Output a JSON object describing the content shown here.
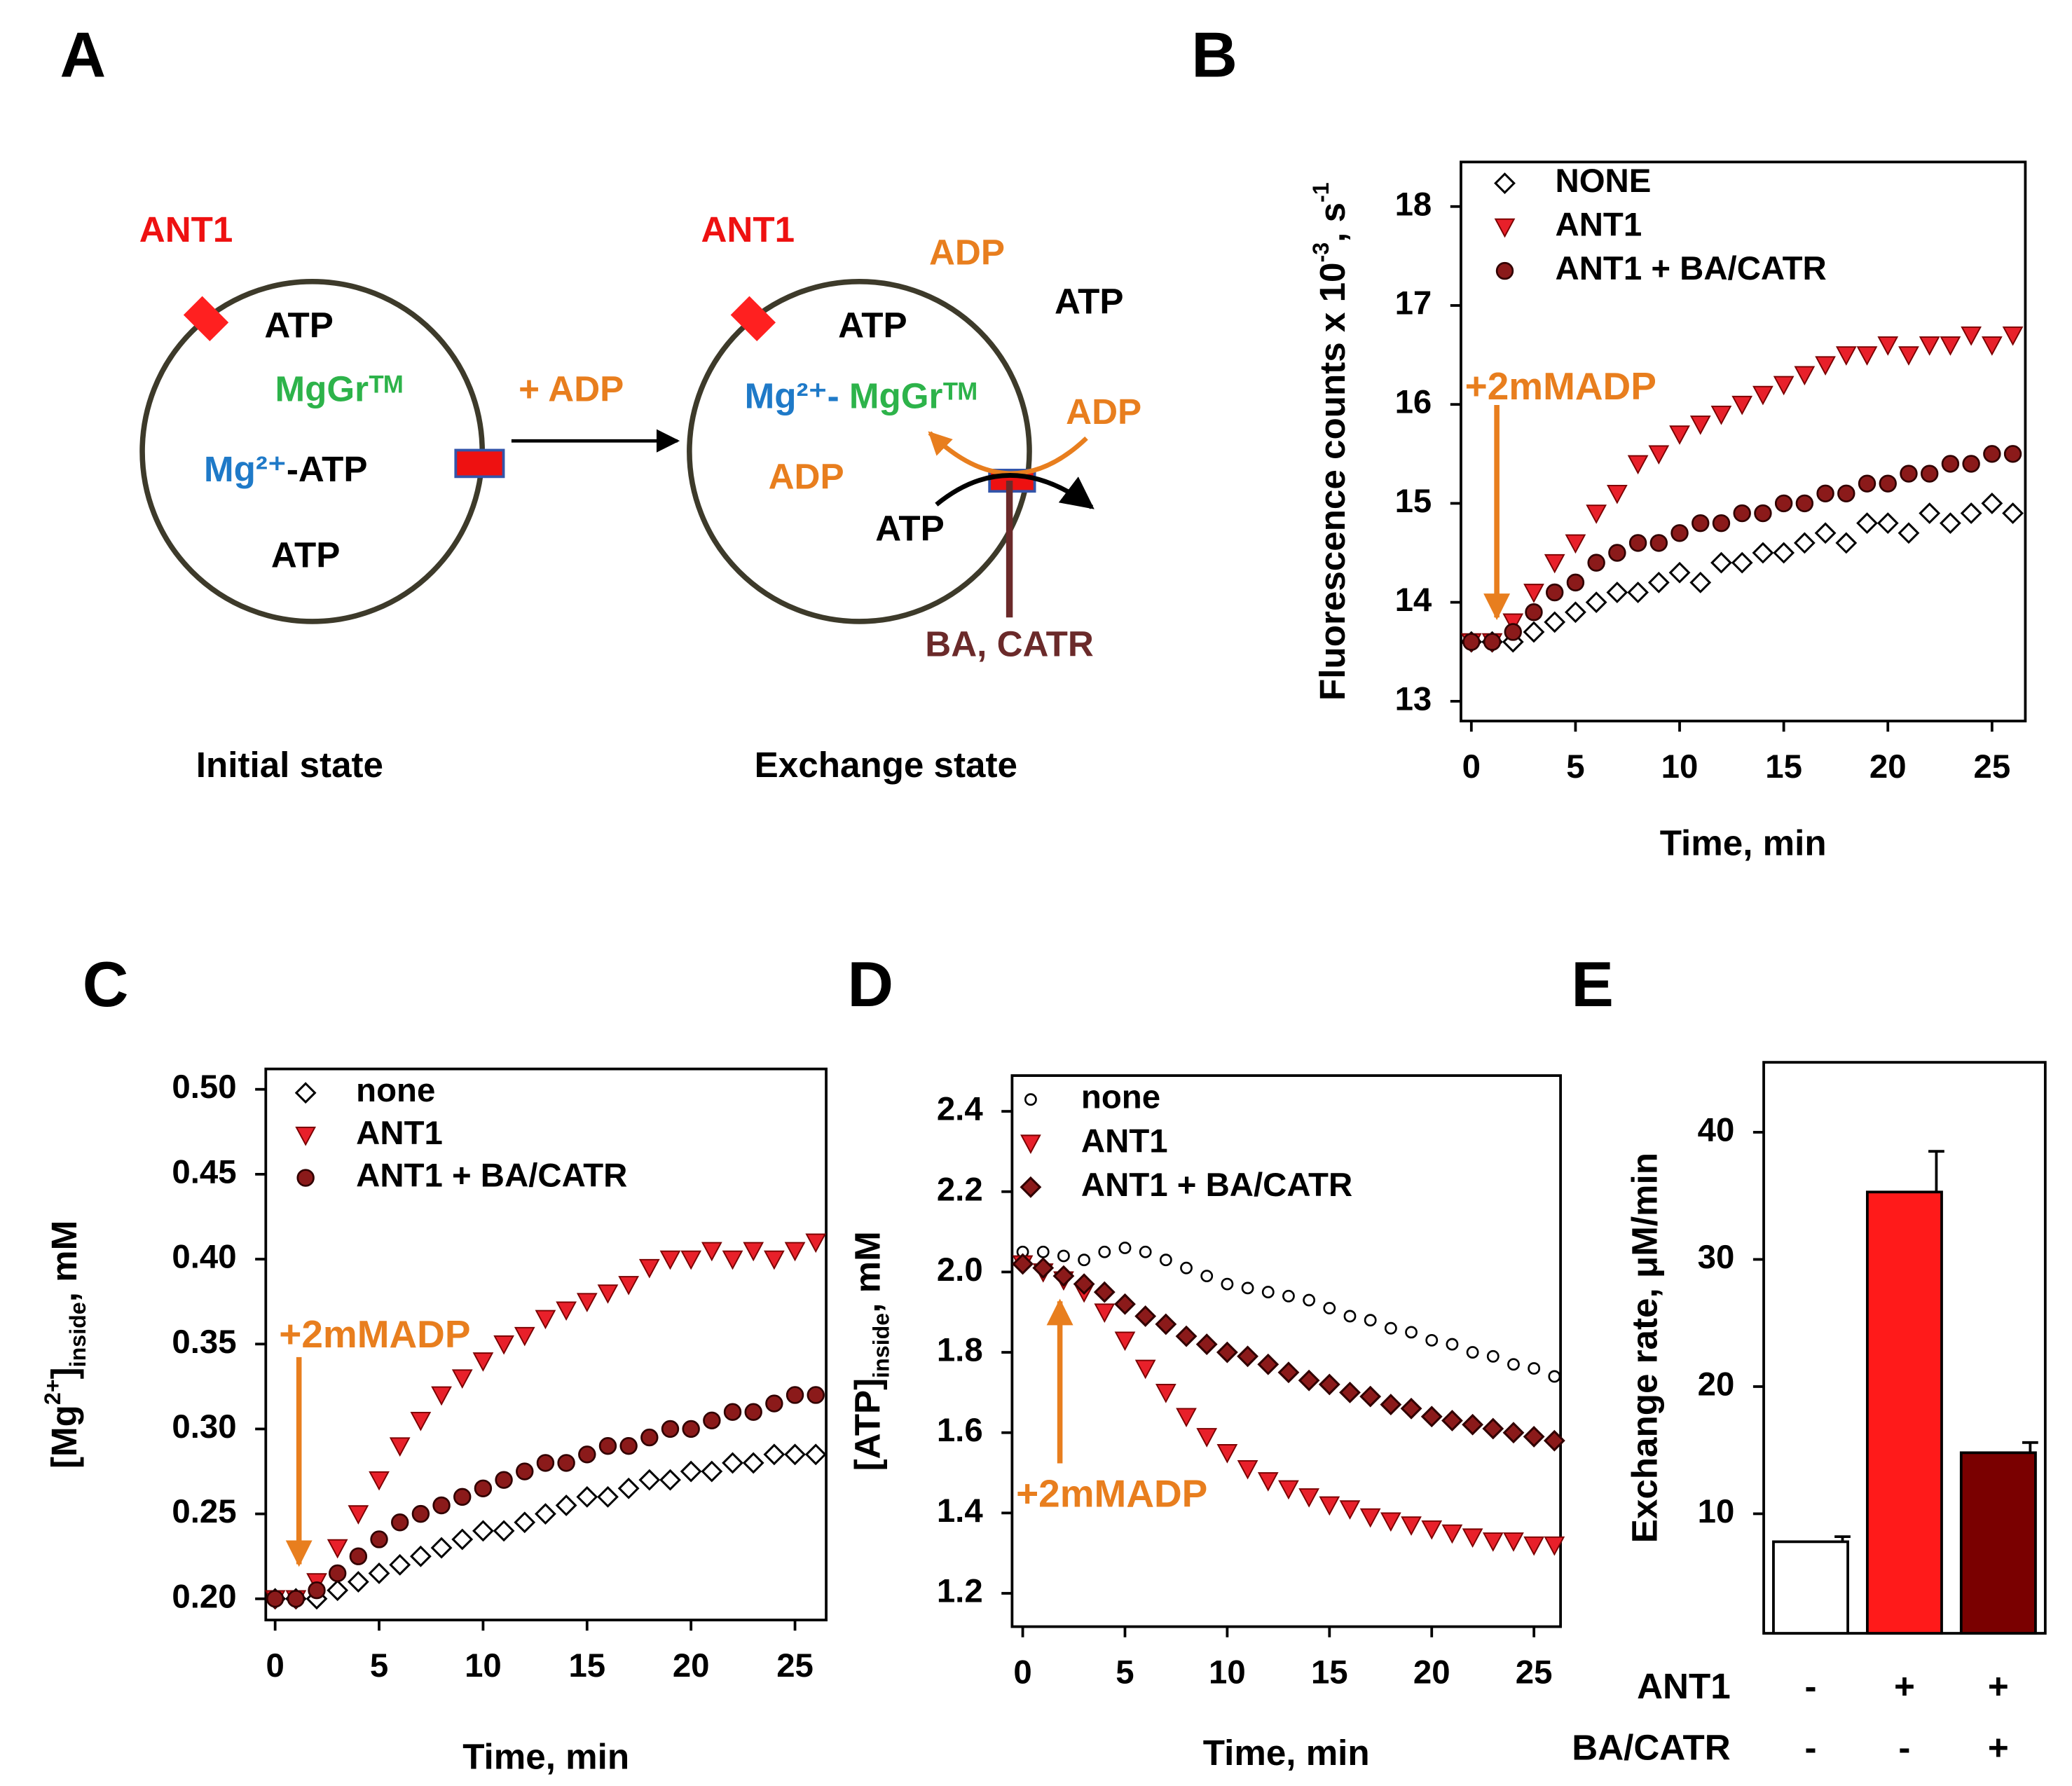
{
  "diagram": {
    "label": "A",
    "initial": {
      "ant1": "ANT1",
      "atp_top": "ATP",
      "mggr": "MgGrᵀᴹ",
      "mg_ion": "Mg²⁺",
      "mg_atp_rest": "-ATP",
      "atp_bottom": "ATP",
      "caption": "Initial state"
    },
    "arrow_label": "+ ADP",
    "exchange": {
      "ant1": "ANT1",
      "adp_top": "ADP",
      "atp_outside": "ATP",
      "atp_top": "ATP",
      "mg_ion": "Mg²⁺-",
      "mggr": "MgGrᵀᴹ",
      "adp_out": "ADP",
      "adp_in": "ADP",
      "atp_in": "ATP",
      "inhibitors": "BA, CATR",
      "caption": "Exchange state"
    }
  },
  "chart_data": [
    {
      "type": "scatter",
      "label": "B",
      "xlabel": "Time, min",
      "ylabel": [
        "Fluorescence counts x 10",
        {
          "sup": "-3"
        },
        ", s",
        {
          "sup": "-1"
        }
      ],
      "xlim": [
        -0.5,
        26.6
      ],
      "xticks": [
        0,
        5,
        10,
        15,
        20,
        25
      ],
      "ylim": [
        12.8,
        18.45
      ],
      "yticks": [
        13,
        14,
        15,
        16,
        17,
        18
      ],
      "legend": "upper left",
      "annotation": "+2mMADP",
      "x": [
        0,
        1,
        2,
        3,
        4,
        5,
        6,
        7,
        8,
        9,
        10,
        11,
        12,
        13,
        14,
        15,
        16,
        17,
        18,
        19,
        20,
        21,
        22,
        23,
        24,
        25,
        26
      ],
      "series": [
        {
          "name": "NONE",
          "marker": "open-diamond",
          "color": "#000000",
          "values": [
            13.6,
            13.6,
            13.6,
            13.7,
            13.8,
            13.9,
            14.0,
            14.1,
            14.1,
            14.2,
            14.3,
            14.2,
            14.4,
            14.4,
            14.5,
            14.5,
            14.6,
            14.7,
            14.6,
            14.8,
            14.8,
            14.7,
            14.9,
            14.8,
            14.9,
            15.0,
            14.9
          ]
        },
        {
          "name": "ANT1",
          "marker": "triangle-down",
          "color": "#e8202a",
          "values": [
            13.6,
            13.6,
            13.8,
            14.1,
            14.4,
            14.6,
            14.9,
            15.1,
            15.4,
            15.5,
            15.7,
            15.8,
            15.9,
            16.0,
            16.1,
            16.2,
            16.3,
            16.4,
            16.5,
            16.5,
            16.6,
            16.5,
            16.6,
            16.6,
            16.7,
            16.6,
            16.7
          ]
        },
        {
          "name": "ANT1 + BA/CATR",
          "marker": "circle",
          "color": "#8b1a1a",
          "values": [
            13.6,
            13.6,
            13.7,
            13.9,
            14.1,
            14.2,
            14.4,
            14.5,
            14.6,
            14.6,
            14.7,
            14.8,
            14.8,
            14.9,
            14.9,
            15.0,
            15.0,
            15.1,
            15.1,
            15.2,
            15.2,
            15.3,
            15.3,
            15.4,
            15.4,
            15.5,
            15.5
          ]
        }
      ]
    },
    {
      "type": "scatter",
      "label": "C",
      "xlabel": "Time, min",
      "ylabel": [
        "[Mg",
        {
          "sup": "2+"
        },
        "]",
        {
          "sub": "inside"
        },
        ", mM"
      ],
      "xlim": [
        -0.45,
        26.5
      ],
      "xticks": [
        0,
        5,
        10,
        15,
        20,
        25
      ],
      "ylim": [
        0.1875,
        0.512
      ],
      "yticks": [
        {
          "value": 0.2,
          "label": "0.20"
        },
        0.25,
        {
          "value": 0.3,
          "label": "0.30"
        },
        0.35,
        {
          "value": 0.4,
          "label": "0.40"
        },
        0.45,
        {
          "value": 0.5,
          "label": "0.50"
        }
      ],
      "legend": "upper left",
      "annotation": "+2mMADP",
      "x": [
        0,
        1,
        2,
        3,
        4,
        5,
        6,
        7,
        8,
        9,
        10,
        11,
        12,
        13,
        14,
        15,
        16,
        17,
        18,
        19,
        20,
        21,
        22,
        23,
        24,
        25,
        26
      ],
      "series": [
        {
          "name": "none",
          "marker": "open-diamond",
          "color": "#000000",
          "values": [
            0.2,
            0.2,
            0.2,
            0.205,
            0.21,
            0.215,
            0.22,
            0.225,
            0.23,
            0.235,
            0.24,
            0.24,
            0.245,
            0.25,
            0.255,
            0.26,
            0.26,
            0.265,
            0.27,
            0.27,
            0.275,
            0.275,
            0.28,
            0.28,
            0.285,
            0.285,
            0.285
          ]
        },
        {
          "name": "ANT1",
          "marker": "triangle-down",
          "color": "#e8202a",
          "values": [
            0.2,
            0.2,
            0.21,
            0.23,
            0.25,
            0.27,
            0.29,
            0.305,
            0.32,
            0.33,
            0.34,
            0.35,
            0.355,
            0.365,
            0.37,
            0.375,
            0.38,
            0.385,
            0.395,
            0.4,
            0.4,
            0.405,
            0.4,
            0.405,
            0.4,
            0.405,
            0.41
          ]
        },
        {
          "name": "ANT1 + BA/CATR",
          "marker": "circle",
          "color": "#8b1a1a",
          "values": [
            0.2,
            0.2,
            0.205,
            0.215,
            0.225,
            0.235,
            0.245,
            0.25,
            0.255,
            0.26,
            0.265,
            0.27,
            0.275,
            0.28,
            0.28,
            0.285,
            0.29,
            0.29,
            0.295,
            0.3,
            0.3,
            0.305,
            0.31,
            0.31,
            0.315,
            0.32,
            0.32
          ]
        }
      ]
    },
    {
      "type": "scatter",
      "label": "D",
      "xlabel": "Time, min",
      "ylabel": [
        "[ATP]",
        {
          "sub": "inside"
        },
        ", mM"
      ],
      "xlim": [
        -0.52,
        26.3
      ],
      "xticks": [
        0,
        5,
        10,
        15,
        20,
        25
      ],
      "ylim": [
        1.117,
        2.489
      ],
      "yticks": [
        1.2,
        1.4,
        1.6,
        1.8,
        {
          "value": 2,
          "label": "2.0"
        },
        2.2,
        2.4
      ],
      "legend": "upper left",
      "annotation": "+2mMADP",
      "x": [
        0,
        1,
        2,
        3,
        4,
        5,
        6,
        7,
        8,
        9,
        10,
        11,
        12,
        13,
        14,
        15,
        16,
        17,
        18,
        19,
        20,
        21,
        22,
        23,
        24,
        25,
        26
      ],
      "series": [
        {
          "name": "none",
          "marker": "open-circle",
          "color": "#000000",
          "values": [
            2.05,
            2.05,
            2.04,
            2.03,
            2.05,
            2.06,
            2.05,
            2.03,
            2.01,
            1.99,
            1.97,
            1.96,
            1.95,
            1.94,
            1.93,
            1.91,
            1.89,
            1.88,
            1.86,
            1.85,
            1.83,
            1.82,
            1.8,
            1.79,
            1.77,
            1.76,
            1.74
          ]
        },
        {
          "name": "ANT1",
          "marker": "triangle-down",
          "color": "#e8202a",
          "values": [
            2.02,
            2.0,
            1.98,
            1.95,
            1.9,
            1.83,
            1.76,
            1.7,
            1.64,
            1.59,
            1.55,
            1.51,
            1.48,
            1.46,
            1.44,
            1.42,
            1.41,
            1.39,
            1.38,
            1.37,
            1.36,
            1.35,
            1.34,
            1.33,
            1.33,
            1.32,
            1.32
          ]
        },
        {
          "name": "ANT1 + BA/CATR",
          "marker": "diamond",
          "color": "#8b1a1a",
          "values": [
            2.02,
            2.01,
            1.99,
            1.97,
            1.95,
            1.92,
            1.89,
            1.87,
            1.84,
            1.82,
            1.8,
            1.79,
            1.77,
            1.75,
            1.73,
            1.72,
            1.7,
            1.69,
            1.67,
            1.66,
            1.64,
            1.63,
            1.62,
            1.61,
            1.6,
            1.59,
            1.58
          ]
        }
      ]
    },
    {
      "type": "bar",
      "label": "E",
      "ylabel": [
        "Exchange rate, μM/min"
      ],
      "ylim": [
        0.6,
        45.5
      ],
      "yticks": [
        10,
        20,
        30,
        40
      ],
      "values": [
        7.8,
        35.3,
        14.8
      ],
      "errors": [
        0.4,
        3.2,
        0.8
      ],
      "colors": [
        "#ffffff",
        "#ff1a1a",
        "#7a0000"
      ],
      "conditions": [
        {
          "name": "ANT1",
          "values": [
            "-",
            "+",
            "+"
          ]
        },
        {
          "name": "BA/CATR",
          "values": [
            "-",
            "-",
            "+"
          ]
        }
      ]
    }
  ]
}
